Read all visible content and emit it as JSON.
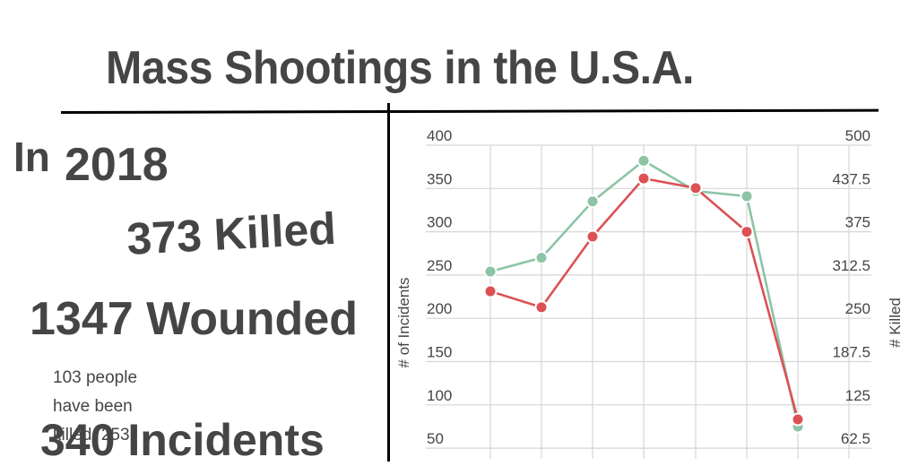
{
  "title": "Mass Shootings in the U.S.A.",
  "summary": {
    "prefix": "In",
    "year": "2018",
    "killed": "373 Killed",
    "wounded": "1347 Wounded",
    "incidents": "340 Incidents",
    "note": "103 people have been killed, 253"
  },
  "colors": {
    "incidents": "#8cc4a5",
    "killed": "#dc5154",
    "text": "#454545",
    "grid": "#d6d6d6"
  },
  "chart_data": {
    "type": "line",
    "title": "",
    "xlabel": "",
    "ylabel": "# of Incidents",
    "ylabel_right": "# Killed",
    "ylim": [
      0,
      400
    ],
    "ylim_right": [
      0,
      500
    ],
    "yticks": [
      "400",
      "350",
      "300",
      "250",
      "200",
      "150",
      "100",
      "50"
    ],
    "yticks_right": [
      "500",
      "437.5",
      "375",
      "312.5",
      "250",
      "187.5",
      "125",
      "62.5"
    ],
    "grid": true,
    "x": [
      1,
      2,
      3,
      4,
      5,
      6,
      7
    ],
    "series": [
      {
        "name": "Incidents",
        "axis": "left",
        "color": "#8cc4a5",
        "values": [
          254,
          270,
          335,
          382,
          347,
          341,
          75
        ]
      },
      {
        "name": "Killed",
        "axis": "right",
        "color": "#dc5154",
        "values": [
          289,
          266,
          368,
          452,
          438,
          375,
          104
        ]
      }
    ]
  }
}
